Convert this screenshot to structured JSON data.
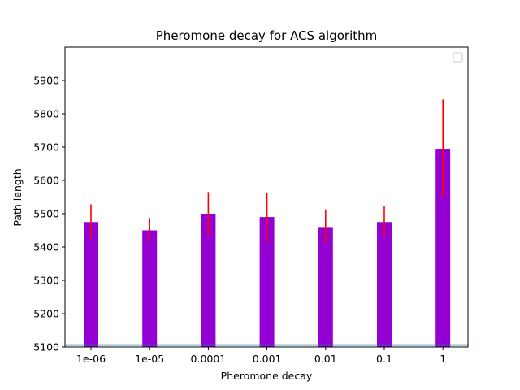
{
  "chart_data": {
    "type": "bar",
    "title": "Pheromone decay for ACS algorithm",
    "xlabel": "Pheromone decay",
    "ylabel": "Path length",
    "categories": [
      "1e-06",
      "1e-05",
      "0.0001",
      "0.001",
      "0.01",
      "0.1",
      "1"
    ],
    "values": [
      5475,
      5450,
      5500,
      5490,
      5460,
      5475,
      5695
    ],
    "error": [
      [
        5425,
        5528
      ],
      [
        5415,
        5487
      ],
      [
        5435,
        5565
      ],
      [
        5415,
        5562
      ],
      [
        5410,
        5513
      ],
      [
        5430,
        5523
      ],
      [
        5548,
        5843
      ]
    ],
    "baseline": 5106,
    "ylim": [
      5100,
      6000
    ],
    "yticks": [
      5100,
      5200,
      5300,
      5400,
      5500,
      5600,
      5700,
      5800,
      5900
    ],
    "grid": false,
    "legend": "top-right (empty)",
    "colors": {
      "bar": "#9400d3",
      "error": "#ff0000",
      "baseline": "#1f77b4",
      "axis": "#000000"
    }
  }
}
